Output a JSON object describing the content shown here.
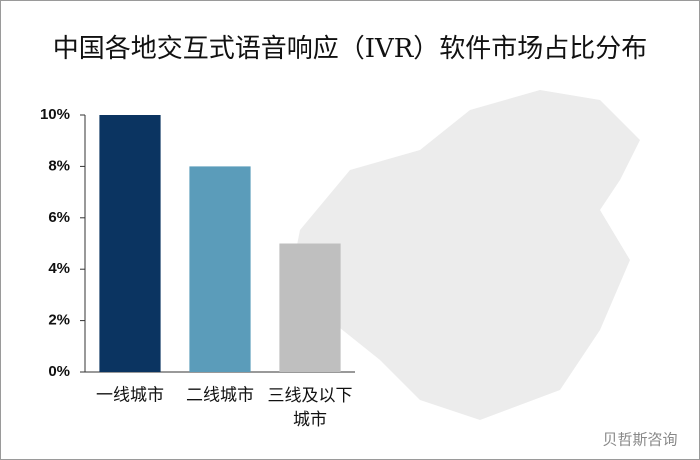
{
  "chart_data": {
    "type": "bar",
    "title": "中国各地交互式语音响应（IVR）软件市场占比分布",
    "categories": [
      "一线城市",
      "二线城市",
      "三线及以下城市"
    ],
    "values": [
      10,
      8,
      5
    ],
    "colors": [
      "#0b3461",
      "#5b9cba",
      "#bfbfbf"
    ],
    "ylim": [
      0,
      10
    ],
    "yticks": [
      {
        "value": 0,
        "label": "0%"
      },
      {
        "value": 2,
        "label": "2%"
      },
      {
        "value": 4,
        "label": "4%"
      },
      {
        "value": 6,
        "label": "6%"
      },
      {
        "value": 8,
        "label": "8%"
      },
      {
        "value": 10,
        "label": "10%"
      }
    ],
    "grid": false,
    "watermark": "贝哲斯咨询"
  }
}
